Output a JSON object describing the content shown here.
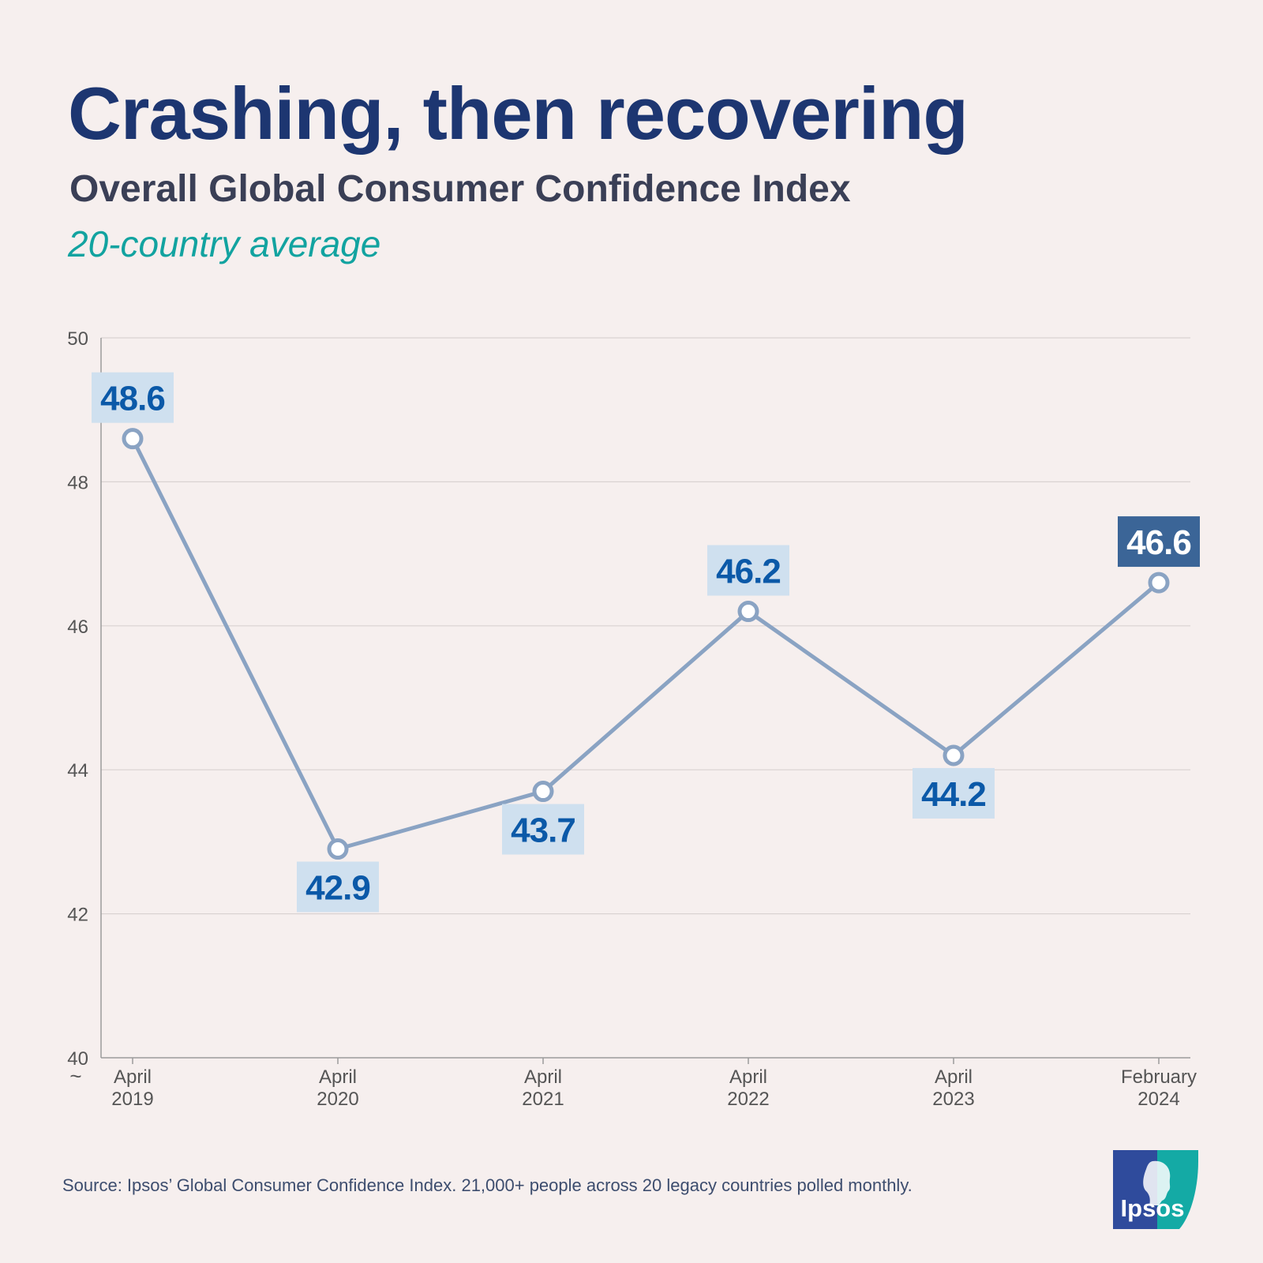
{
  "header": {
    "title": "Crashing, then recovering",
    "subtitle": "Overall Global Consumer Confidence Index",
    "note": "20-country average"
  },
  "chart_data": {
    "type": "line",
    "categories": [
      [
        "April",
        "2019"
      ],
      [
        "April",
        "2020"
      ],
      [
        "April",
        "2021"
      ],
      [
        "April",
        "2022"
      ],
      [
        "April",
        "2023"
      ],
      [
        "February",
        "2024"
      ]
    ],
    "series": [
      {
        "name": "Global Consumer Confidence Index",
        "values": [
          48.6,
          42.9,
          43.7,
          46.2,
          44.2,
          46.6
        ]
      }
    ],
    "data_labels": [
      "48.6",
      "42.9",
      "43.7",
      "46.2",
      "44.2",
      "46.6"
    ],
    "label_positions": [
      "above",
      "below",
      "below",
      "above",
      "below",
      "above"
    ],
    "highlight_index": 5,
    "yticks": [
      40,
      42,
      44,
      46,
      48,
      50
    ],
    "ylim": [
      40,
      50
    ],
    "axis_break_symbol": "~",
    "grid": true,
    "colors": {
      "line": "#8aa3c3",
      "marker_fill": "#ffffff",
      "label_bg": "#cfe0ef",
      "label_text": "#0b59a8",
      "highlight_bg": "#3b6597",
      "highlight_text": "#ffffff",
      "grid": "#d9d2d1",
      "axis": "#9b9b9b",
      "tick_text": "#555555"
    }
  },
  "footer": {
    "source": "Source: Ipsos’ Global Consumer Confidence Index. 21,000+ people across 20 legacy countries polled monthly.",
    "logo_text": "Ipsos",
    "logo_colors": {
      "left": "#2f4b9c",
      "right": "#14aaa5"
    }
  }
}
